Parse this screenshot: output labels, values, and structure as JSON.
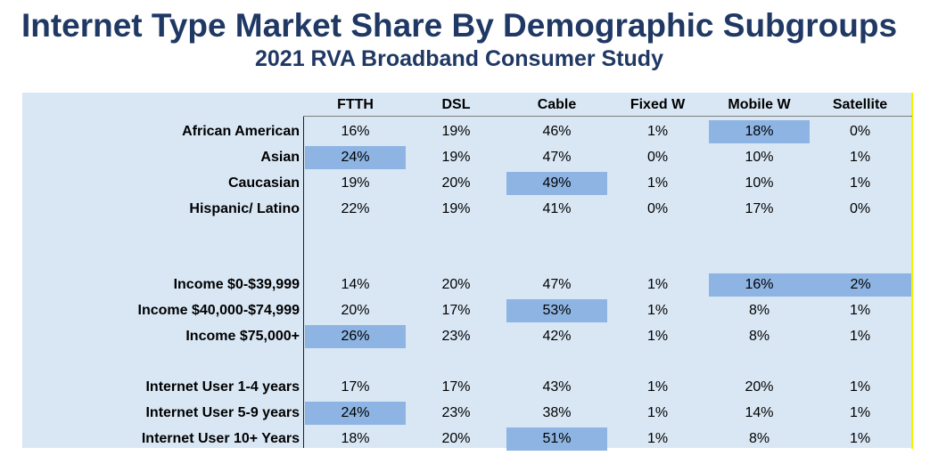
{
  "title": "Internet Type Market Share By Demographic Subgroups",
  "subtitle": "2021 RVA Broadband Consumer Study",
  "highlight_color": "#8db4e2",
  "panel_color": "#d9e7f5",
  "chart_data": {
    "type": "table",
    "columns": [
      "FTTH",
      "DSL",
      "Cable",
      "Fixed W",
      "Mobile W",
      "Satellite"
    ],
    "groups": [
      {
        "rows": [
          {
            "label": "African American",
            "values": [
              "16%",
              "19%",
              "46%",
              "1%",
              "18%",
              "0%"
            ],
            "highlight": [
              4
            ]
          },
          {
            "label": "Asian",
            "values": [
              "24%",
              "19%",
              "47%",
              "0%",
              "10%",
              "1%"
            ],
            "highlight": [
              0
            ]
          },
          {
            "label": "Caucasian",
            "values": [
              "19%",
              "20%",
              "49%",
              "1%",
              "10%",
              "1%"
            ],
            "highlight": [
              2
            ]
          },
          {
            "label": "Hispanic/ Latino",
            "values": [
              "22%",
              "19%",
              "41%",
              "0%",
              "17%",
              "0%"
            ],
            "highlight": []
          }
        ]
      },
      {
        "rows": [
          {
            "label": "Income $0-$39,999",
            "values": [
              "14%",
              "20%",
              "47%",
              "1%",
              "16%",
              "2%"
            ],
            "highlight": [
              4,
              5
            ]
          },
          {
            "label": "Income $40,000-$74,999",
            "values": [
              "20%",
              "17%",
              "53%",
              "1%",
              "8%",
              "1%"
            ],
            "highlight": [
              2
            ]
          },
          {
            "label": "Income $75,000+",
            "values": [
              "26%",
              "23%",
              "42%",
              "1%",
              "8%",
              "1%"
            ],
            "highlight": [
              0
            ]
          }
        ]
      },
      {
        "rows": [
          {
            "label": "Internet User 1-4 years",
            "values": [
              "17%",
              "17%",
              "43%",
              "1%",
              "20%",
              "1%"
            ],
            "highlight": []
          },
          {
            "label": "Internet User 5-9 years",
            "values": [
              "24%",
              "23%",
              "38%",
              "1%",
              "14%",
              "1%"
            ],
            "highlight": [
              0
            ]
          },
          {
            "label": "Internet User 10+ Years",
            "values": [
              "18%",
              "20%",
              "51%",
              "1%",
              "8%",
              "1%"
            ],
            "highlight": [
              2
            ]
          }
        ]
      }
    ]
  }
}
